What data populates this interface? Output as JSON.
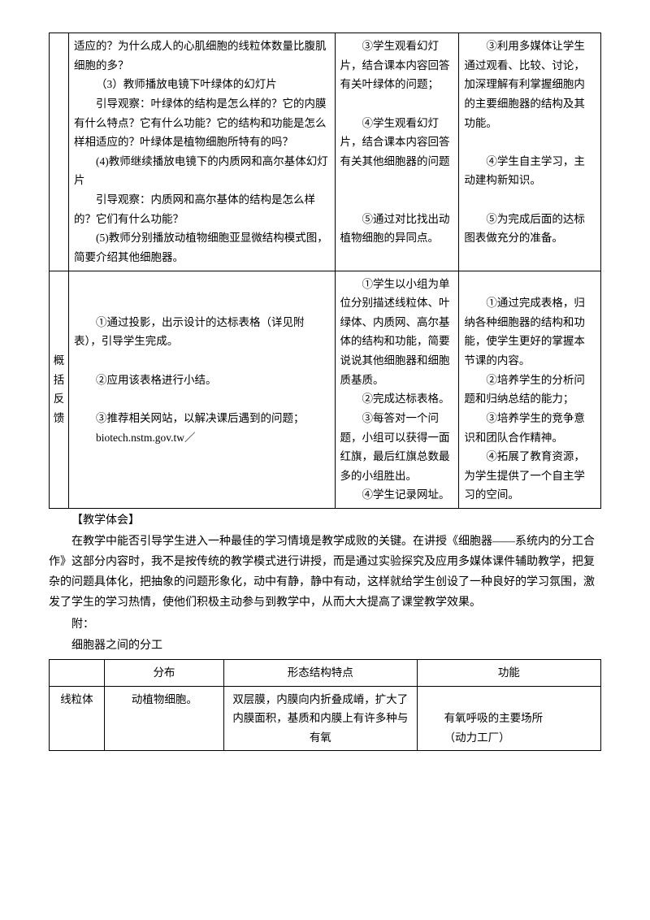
{
  "row1": {
    "header": "",
    "main": {
      "p1": "适应的？为什么成人的心肌细胞的线粒体数量比腹肌细胞的多？",
      "p2": "（3）教师播放电镜下叶绿体的幻灯片",
      "p3": "引导观察：叶绿体的结构是怎么样的？它的内膜有什么特点？它有什么功能？它的结构和功能是怎么样相适应的？叶绿体是植物细胞所特有的吗？",
      "p4": "(4)教师继续播放电镜下的内质网和高尔基体幻灯片",
      "p5": "引导观察：内质网和高尔基体的结构是怎么样的？它们有什么功能？",
      "p6": "(5)教师分别播放动植物细胞亚显微结构模式图，简要介绍其他细胞器。"
    },
    "student": {
      "s3": "③学生观看幻灯片，结合课本内容回答有关叶绿体的问题；",
      "s4": "④学生观看幻灯片，结合课本内容回答有关其他细胞器的问题",
      "s5": "⑤通过对比找出动植物细胞的异同点。"
    },
    "purpose": {
      "p3": "③利用多媒体让学生通过观看、比较、讨论，加深理解有利掌握细胞内的主要细胞器的结构及其功能。",
      "p4": "④学生自主学习，主动建构新知识。",
      "p5": "⑤为完成后面的达标图表做充分的准备。"
    }
  },
  "row2": {
    "header": "概括反馈",
    "main": {
      "p1": "①通过投影，出示设计的达标表格（详见附表），引导学生完成。",
      "p2": "②应用该表格进行小结。",
      "p3": "③推荐相关网站，以解决课后遇到的问题；",
      "p4": "biotech.nstm.gov.tw／"
    },
    "student": {
      "s1": "①学生以小组为单位分别描述线粒体、叶绿体、内质网、高尔基体的结构和功能，简要说说其他细胞器和细胞质基质。",
      "s2": "②完成达标表格。",
      "s3": "③每答对一个问题，小组可以获得一面红旗，最后红旗总数最多的小组胜出。",
      "s4": "④学生记录网址。"
    },
    "purpose": {
      "p1": "①通过完成表格，归纳各种细胞器的结构和功能，使学生更好的掌握本节课的内容。",
      "p2": "②培养学生的分析问题和归纳总结的能力；",
      "p3": "③培养学生的竞争意识和团队合作精神。",
      "p4": "④拓展了教育资源，为学生提供了一个自主学习的空间。"
    }
  },
  "reflection": {
    "title": "【教学体会】",
    "body": "在教学中能否引导学生进入一种最佳的学习情境是教学成败的关键。在讲授《细胞器——系统内的分工合作》这部分内容时，我不是按传统的教学模式进行讲授，而是通过实验探究及应用多媒体课件辅助教学，把复杂的问题具体化，把抽象的问题形象化，动中有静，静中有动，这样就给学生创设了一种良好的学习氛围，激发了学生的学习热情，使他们积极主动参与到教学中，从而大大提高了课堂教学效果。"
  },
  "appendix": {
    "label": "附：",
    "title": "细胞器之间的分工"
  },
  "table2": {
    "headers": {
      "c1": "",
      "c2": "分布",
      "c3": "形态结构特点",
      "c4": "功能"
    },
    "row1": {
      "name": "线粒体",
      "dist": "动植物细胞。",
      "morph": "双层膜，内膜向内折叠成嵴，扩大了内膜面积，基质和内膜上有许多种与有氧",
      "func1": "有氧呼吸的主要场所",
      "func2": "（动力工厂）"
    }
  }
}
